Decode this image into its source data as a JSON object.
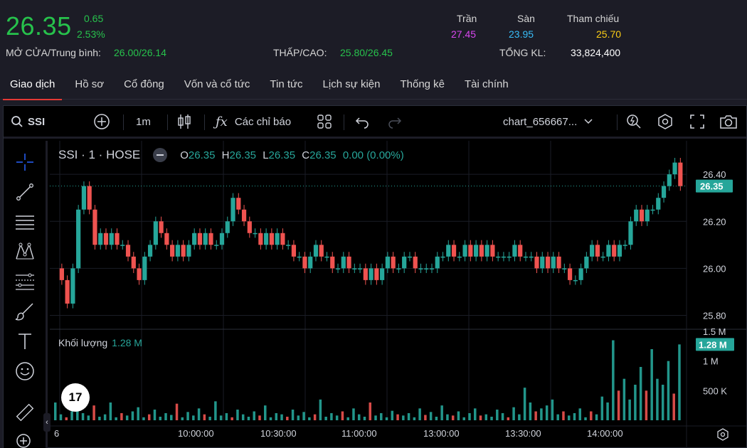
{
  "quote": {
    "price": "26.35",
    "change": "0.65",
    "change_pct": "2.53%",
    "open_avg_label": "MỞ CỬA/Trung bình:",
    "open_avg_value": "26.00/26.14",
    "low_high_label": "THẤP/CAO:",
    "low_high_value": "25.80/26.45",
    "ceiling_label": "Trần",
    "ceiling_value": "27.45",
    "floor_label": "Sàn",
    "floor_value": "23.95",
    "ref_label": "Tham chiếu",
    "ref_value": "25.70",
    "total_vol_label": "TỔNG KL:",
    "total_vol_value": "33,824,400"
  },
  "colors": {
    "up": "#27c24c",
    "ceiling": "#d946ef",
    "floor": "#38bdf8",
    "ref": "#facc15",
    "candle_up": "#26a69a",
    "candle_down": "#ef5350",
    "tab_accent": "#e53935"
  },
  "tabs": [
    {
      "label": "Giao dịch",
      "active": true
    },
    {
      "label": "Hồ sơ"
    },
    {
      "label": "Cổ đông"
    },
    {
      "label": "Vốn và cổ tức"
    },
    {
      "label": "Tin tức"
    },
    {
      "label": "Lịch sự kiện"
    },
    {
      "label": "Thống kê"
    },
    {
      "label": "Tài chính"
    }
  ],
  "toolbar": {
    "symbol": "SSI",
    "interval": "1m",
    "indicators_label": "Các chỉ báo",
    "layout_name": "chart_656667...",
    "icons": [
      "search-icon",
      "plus-circle-icon",
      "candles-icon",
      "fx-icon",
      "layout-grid-icon",
      "undo-icon",
      "redo-icon",
      "chevron-down-icon",
      "quick-search-icon",
      "settings-icon",
      "fullscreen-icon",
      "camera-icon"
    ]
  },
  "left_tools": [
    "crosshair-icon",
    "trend-line-icon",
    "horizontal-lines-icon",
    "pattern-icon",
    "fib-icon",
    "brush-icon",
    "text-icon",
    "emoji-icon",
    "ruler-icon",
    "zoom-in-icon"
  ],
  "legend": {
    "title": "SSI · 1 · HOSE",
    "o_label": "O",
    "o": "26.35",
    "h_label": "H",
    "h": "26.35",
    "l_label": "L",
    "l": "26.35",
    "c_label": "C",
    "c": "26.35",
    "change": "0.00 (0.00%)"
  },
  "volume_legend": {
    "label": "Khối lượng",
    "value": "1.28 M"
  },
  "chart_data": {
    "type": "candlestick",
    "x_tick_labels": [
      "6",
      "10:00:00",
      "10:30:00",
      "11:00:00",
      "13:00:00",
      "13:30:00",
      "14:00:00"
    ],
    "y_tick_labels": [
      "26.40",
      "26.20",
      "26.00",
      "25.80"
    ],
    "ylim": [
      25.75,
      26.47
    ],
    "last_price_label": "26.35",
    "close_path": [
      26.0,
      25.95,
      25.85,
      26.0,
      26.25,
      26.35,
      26.25,
      26.1,
      26.15,
      26.1,
      26.15,
      26.1,
      26.1,
      26.05,
      26.0,
      25.95,
      26.05,
      26.1,
      26.2,
      26.15,
      26.1,
      26.05,
      26.1,
      26.05,
      26.1,
      26.15,
      26.1,
      26.15,
      26.1,
      26.1,
      26.15,
      26.2,
      26.3,
      26.25,
      26.2,
      26.15,
      26.15,
      26.1,
      26.15,
      26.1,
      26.15,
      26.1,
      26.1,
      26.05,
      26.05,
      26.0,
      26.05,
      26.1,
      26.05,
      26.05,
      26.0,
      26.0,
      26.05,
      26.0,
      26.0,
      26.0,
      25.95,
      26.0,
      25.95,
      26.0,
      26.05,
      26.0,
      26.0,
      26.05,
      26.05,
      26.0,
      26.0,
      26.0,
      26.0,
      26.05,
      26.05,
      26.1,
      26.05,
      26.05,
      26.1,
      26.05,
      26.1,
      26.05,
      26.1,
      26.05,
      26.05,
      26.05,
      26.05,
      26.1,
      26.05,
      26.05,
      26.05,
      26.0,
      26.05,
      26.0,
      26.05,
      26.0,
      26.0,
      25.95,
      25.95,
      26.0,
      26.05,
      26.1,
      26.05,
      26.05,
      26.1,
      26.05,
      26.1,
      26.1,
      26.2,
      26.25,
      26.2,
      26.25,
      26.25,
      26.3,
      26.35,
      26.4,
      26.45,
      26.35
    ],
    "volume_axis_labels": [
      "1.5 M",
      "1 M",
      "500 K"
    ],
    "volume_last_label": "1.28 M",
    "volume_ylim": [
      0,
      1.5
    ],
    "volume_bars": [
      0.3,
      0.1,
      0.05,
      0.15,
      0.2,
      0.12,
      0.08,
      0.25,
      0.06,
      0.1,
      0.3,
      0.05,
      0.12,
      0.08,
      0.15,
      0.22,
      0.05,
      0.1,
      0.18,
      0.06,
      0.12,
      0.09,
      0.28,
      0.05,
      0.14,
      0.08,
      0.2,
      0.1,
      0.06,
      0.32,
      0.08,
      0.12,
      0.05,
      0.18,
      0.1,
      0.06,
      0.15,
      0.08,
      0.25,
      0.05,
      0.12,
      0.1,
      0.06,
      0.18,
      0.08,
      0.14,
      0.05,
      0.1,
      0.35,
      0.06,
      0.12,
      0.08,
      0.15,
      0.05,
      0.2,
      0.1,
      0.06,
      0.3,
      0.08,
      0.12,
      0.05,
      0.16,
      0.1,
      0.08,
      0.12,
      0.05,
      0.2,
      0.09,
      0.14,
      0.06,
      0.25,
      0.1,
      0.08,
      0.15,
      0.05,
      0.12,
      0.2,
      0.08,
      0.1,
      0.06,
      0.18,
      0.12,
      0.05,
      0.22,
      0.1,
      0.55,
      0.3,
      0.15,
      0.2,
      0.25,
      0.35,
      0.1,
      0.15,
      0.08,
      0.12,
      0.2,
      0.05,
      0.15,
      0.1,
      0.4,
      0.3,
      1.35,
      0.5,
      0.7,
      0.35,
      0.6,
      0.9,
      0.5,
      1.2,
      0.7,
      0.6,
      1.0,
      0.45,
      1.28
    ]
  }
}
